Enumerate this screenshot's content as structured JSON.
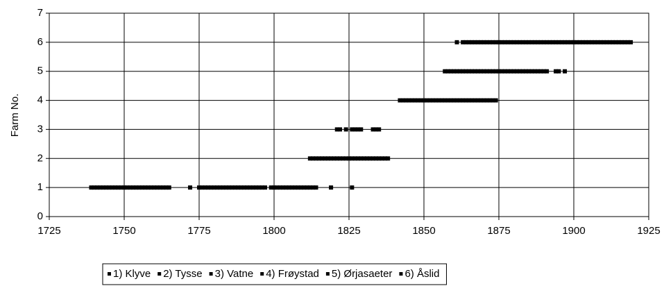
{
  "chart_data": {
    "type": "scatter",
    "y_label": "Farm No.",
    "xlim": [
      1725,
      1925
    ],
    "xticks": [
      1725,
      1750,
      1775,
      1800,
      1825,
      1850,
      1875,
      1900,
      1925
    ],
    "ylim": [
      0,
      7
    ],
    "yticks": [
      0,
      1,
      2,
      3,
      4,
      5,
      6,
      7
    ],
    "grid": true,
    "legend": "bottom",
    "series": [
      {
        "name": "1) Klyve",
        "color": "#000000",
        "x": [
          1739,
          1740,
          1741,
          1742,
          1743,
          1744,
          1745,
          1746,
          1747,
          1748,
          1749,
          1750,
          1751,
          1752,
          1753,
          1754,
          1755,
          1756,
          1757,
          1758,
          1759,
          1760,
          1761,
          1762,
          1763,
          1764,
          1765,
          1772,
          1775,
          1776,
          1777,
          1778,
          1779,
          1780,
          1781,
          1782,
          1783,
          1784,
          1785,
          1786,
          1787,
          1788,
          1789,
          1790,
          1791,
          1792,
          1793,
          1794,
          1795,
          1796,
          1797,
          1799,
          1800,
          1801,
          1802,
          1803,
          1804,
          1805,
          1806,
          1807,
          1808,
          1809,
          1810,
          1811,
          1812,
          1813,
          1814,
          1819,
          1826
        ],
        "values": [
          1,
          1,
          1,
          1,
          1,
          1,
          1,
          1,
          1,
          1,
          1,
          1,
          1,
          1,
          1,
          1,
          1,
          1,
          1,
          1,
          1,
          1,
          1,
          1,
          1,
          1,
          1,
          1,
          1,
          1,
          1,
          1,
          1,
          1,
          1,
          1,
          1,
          1,
          1,
          1,
          1,
          1,
          1,
          1,
          1,
          1,
          1,
          1,
          1,
          1,
          1,
          1,
          1,
          1,
          1,
          1,
          1,
          1,
          1,
          1,
          1,
          1,
          1,
          1,
          1,
          1,
          1,
          1,
          1
        ]
      },
      {
        "name": "2) Tysse",
        "color": "#000000",
        "x": [
          1812,
          1813,
          1814,
          1815,
          1816,
          1817,
          1818,
          1819,
          1820,
          1821,
          1822,
          1823,
          1824,
          1825,
          1826,
          1827,
          1828,
          1829,
          1830,
          1831,
          1832,
          1833,
          1834,
          1835,
          1836,
          1837,
          1838
        ],
        "values": [
          2,
          2,
          2,
          2,
          2,
          2,
          2,
          2,
          2,
          2,
          2,
          2,
          2,
          2,
          2,
          2,
          2,
          2,
          2,
          2,
          2,
          2,
          2,
          2,
          2,
          2,
          2
        ]
      },
      {
        "name": "3) Vatne",
        "color": "#000000",
        "x": [
          1821,
          1822,
          1824,
          1826,
          1827,
          1828,
          1829,
          1833,
          1834,
          1835
        ],
        "values": [
          3,
          3,
          3,
          3,
          3,
          3,
          3,
          3,
          3,
          3
        ]
      },
      {
        "name": "4) Frøystad",
        "color": "#000000",
        "x": [
          1842,
          1843,
          1844,
          1845,
          1846,
          1847,
          1848,
          1849,
          1850,
          1851,
          1852,
          1853,
          1854,
          1855,
          1856,
          1857,
          1858,
          1859,
          1860,
          1861,
          1862,
          1863,
          1864,
          1865,
          1866,
          1867,
          1868,
          1869,
          1870,
          1871,
          1872,
          1873,
          1874
        ],
        "values": [
          4,
          4,
          4,
          4,
          4,
          4,
          4,
          4,
          4,
          4,
          4,
          4,
          4,
          4,
          4,
          4,
          4,
          4,
          4,
          4,
          4,
          4,
          4,
          4,
          4,
          4,
          4,
          4,
          4,
          4,
          4,
          4,
          4
        ]
      },
      {
        "name": "5) Ørjasaeter",
        "color": "#000000",
        "x": [
          1857,
          1858,
          1859,
          1860,
          1861,
          1862,
          1863,
          1864,
          1865,
          1866,
          1867,
          1868,
          1869,
          1870,
          1871,
          1872,
          1873,
          1874,
          1875,
          1876,
          1877,
          1878,
          1879,
          1880,
          1881,
          1882,
          1883,
          1884,
          1885,
          1886,
          1887,
          1888,
          1889,
          1890,
          1891,
          1894,
          1895,
          1897
        ],
        "values": [
          5,
          5,
          5,
          5,
          5,
          5,
          5,
          5,
          5,
          5,
          5,
          5,
          5,
          5,
          5,
          5,
          5,
          5,
          5,
          5,
          5,
          5,
          5,
          5,
          5,
          5,
          5,
          5,
          5,
          5,
          5,
          5,
          5,
          5,
          5,
          5,
          5,
          5
        ]
      },
      {
        "name": "6) Åslid",
        "color": "#000000",
        "x": [
          1861,
          1863,
          1864,
          1865,
          1866,
          1867,
          1868,
          1869,
          1870,
          1871,
          1872,
          1873,
          1874,
          1875,
          1876,
          1877,
          1878,
          1879,
          1880,
          1881,
          1882,
          1883,
          1884,
          1885,
          1886,
          1887,
          1888,
          1889,
          1890,
          1891,
          1892,
          1893,
          1894,
          1895,
          1896,
          1897,
          1898,
          1899,
          1900,
          1901,
          1902,
          1903,
          1904,
          1905,
          1906,
          1907,
          1908,
          1909,
          1910,
          1911,
          1912,
          1913,
          1914,
          1915,
          1916,
          1917,
          1918,
          1919
        ],
        "values": [
          6,
          6,
          6,
          6,
          6,
          6,
          6,
          6,
          6,
          6,
          6,
          6,
          6,
          6,
          6,
          6,
          6,
          6,
          6,
          6,
          6,
          6,
          6,
          6,
          6,
          6,
          6,
          6,
          6,
          6,
          6,
          6,
          6,
          6,
          6,
          6,
          6,
          6,
          6,
          6,
          6,
          6,
          6,
          6,
          6,
          6,
          6,
          6,
          6,
          6,
          6,
          6,
          6,
          6,
          6,
          6,
          6,
          6
        ]
      }
    ]
  }
}
